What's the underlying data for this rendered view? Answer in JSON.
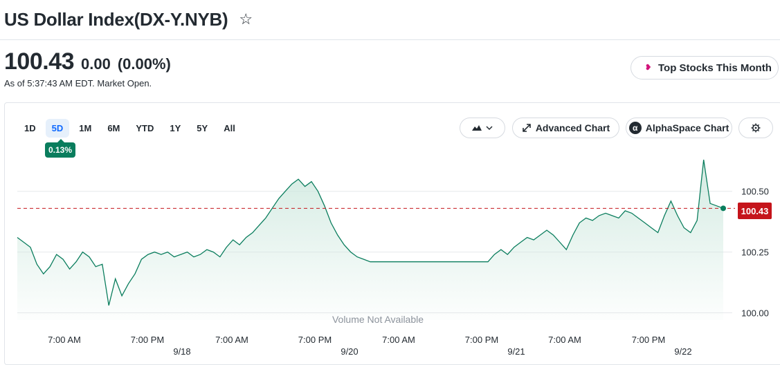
{
  "header": {
    "title": "US Dollar Index(DX-Y.NYB)"
  },
  "quote": {
    "price": "100.43",
    "change": "0.00",
    "change_pct": "(0.00%)",
    "as_of": "As of 5:37:43 AM EDT. Market Open."
  },
  "promo": {
    "label": "Top Stocks This Month"
  },
  "ranges": [
    {
      "label": "1D"
    },
    {
      "label": "5D"
    },
    {
      "label": "1M"
    },
    {
      "label": "6M"
    },
    {
      "label": "YTD"
    },
    {
      "label": "1Y"
    },
    {
      "label": "5Y"
    },
    {
      "label": "All"
    }
  ],
  "active_range": "5D",
  "range_change_badge": "0.13%",
  "toolbar": {
    "advanced_chart": "Advanced Chart",
    "alphaspace_chart": "AlphaSpace Chart"
  },
  "icons": {
    "star": "star-icon",
    "chart_type": "mountain-chart-icon",
    "expand": "expand-arrows-icon",
    "alpha": "alpha-icon",
    "settings": "gear-icon",
    "promo": "sparkle-icon"
  },
  "chart_data": {
    "type": "area",
    "ylim": [
      99.97,
      100.67
    ],
    "y_ticks": [
      100.0,
      100.25,
      100.5
    ],
    "y_tick_labels": [
      "100.00",
      "100.25",
      "100.50"
    ],
    "grid": true,
    "last_price_line": 100.43,
    "last_price_label": "100.43",
    "no_volume_text": "Volume Not Available",
    "time_labels": [
      "7:00 AM",
      "7:00 PM",
      "7:00 AM",
      "7:00 PM",
      "7:00 AM",
      "7:00 PM",
      "7:00 AM",
      "7:00 PM"
    ],
    "date_labels": [
      "9/18",
      "9/20",
      "9/21",
      "9/22"
    ],
    "colors": {
      "line": "#0a7d5d",
      "area_top": "#cfe9df",
      "ref_line": "#c5141b",
      "grid": "#e6e8eb"
    },
    "series": [
      {
        "values": [
          100.31,
          100.29,
          100.27,
          100.2,
          100.16,
          100.19,
          100.24,
          100.22,
          100.18,
          100.21,
          100.25,
          100.23,
          100.19,
          100.2,
          100.03,
          100.14,
          100.07,
          100.12,
          100.16,
          100.22,
          100.24,
          100.25,
          100.24,
          100.25,
          100.23,
          100.24,
          100.25,
          100.23,
          100.24,
          100.26,
          100.25,
          100.23,
          100.27,
          100.3,
          100.28,
          100.31,
          100.33,
          100.36,
          100.39,
          100.43,
          100.47,
          100.5,
          100.53,
          100.55,
          100.52,
          100.54,
          100.5,
          100.44,
          100.37,
          100.32,
          100.28,
          100.25,
          100.23,
          100.22,
          100.21,
          100.21,
          100.21,
          100.21,
          100.21,
          100.21,
          100.21,
          100.21,
          100.21,
          100.21,
          100.21,
          100.21,
          100.21,
          100.21,
          100.21,
          100.21,
          100.21,
          100.21,
          100.21,
          100.24,
          100.26,
          100.24,
          100.27,
          100.29,
          100.31,
          100.3,
          100.32,
          100.34,
          100.32,
          100.29,
          100.26,
          100.32,
          100.37,
          100.39,
          100.38,
          100.4,
          100.41,
          100.4,
          100.39,
          100.42,
          100.41,
          100.39,
          100.37,
          100.35,
          100.33,
          100.4,
          100.46,
          100.4,
          100.35,
          100.33,
          100.38,
          100.63,
          100.45,
          100.44,
          100.43
        ]
      }
    ]
  }
}
